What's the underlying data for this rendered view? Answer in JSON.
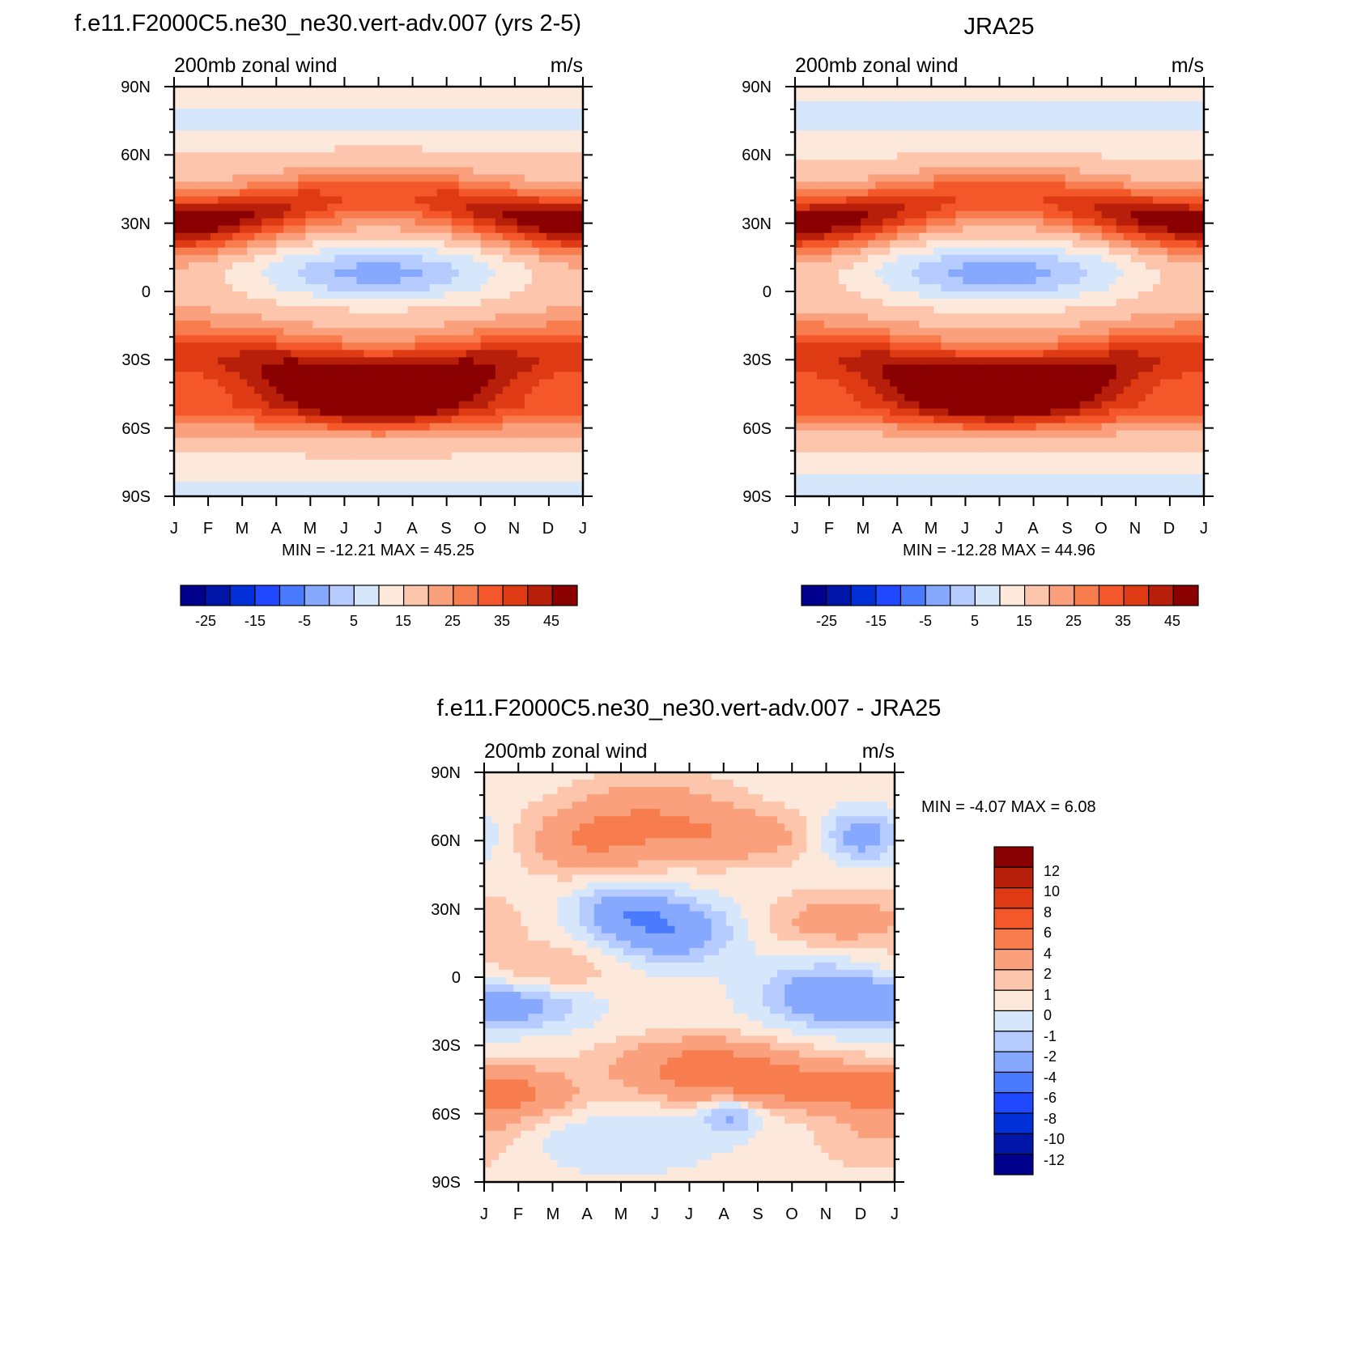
{
  "colorbar_palette": [
    "#00008c",
    "#0016a8",
    "#0230d8",
    "#1f48ff",
    "#4a7bff",
    "#86a8ff",
    "#b6cbff",
    "#d6e6fb",
    "#fde8dc",
    "#fdc6ac",
    "#faa07d",
    "#f77c4e",
    "#f4572a",
    "#de3a14",
    "#b81f0a",
    "#8a0000"
  ],
  "diff_palette": [
    "#00008c",
    "#0016a8",
    "#0230d8",
    "#1f48ff",
    "#4a7bff",
    "#86a8ff",
    "#b6cbff",
    "#d6e6fb",
    "#fde8dc",
    "#fdc6ac",
    "#faa07d",
    "#f77c4e",
    "#f4572a",
    "#de3a14",
    "#b81f0a",
    "#8a0000"
  ],
  "common": {
    "left_label": "200mb zonal wind",
    "right_label": "m/s",
    "months": [
      "J",
      "F",
      "M",
      "A",
      "M",
      "J",
      "J",
      "A",
      "S",
      "O",
      "N",
      "D",
      "J"
    ],
    "lat_labels": [
      "90N",
      "60N",
      "30N",
      "0",
      "30S",
      "60S",
      "90S"
    ]
  },
  "chart_data": [
    {
      "type": "heatmap",
      "id": "model",
      "title": "f.e11.F2000C5.ne30_ne30.vert-adv.007 (yrs 2-5)",
      "left_label": "200mb zonal wind",
      "right_label": "m/s",
      "x": [
        "J",
        "F",
        "M",
        "A",
        "M",
        "J",
        "J",
        "A",
        "S",
        "O",
        "N",
        "D",
        "J"
      ],
      "y": [
        "90N",
        "60N",
        "30N",
        "0",
        "30S",
        "60S",
        "90S"
      ],
      "min": -12.21,
      "max": 45.25,
      "stats_text": "MIN = -12.21 MAX =  45.25",
      "colorbar_labels": [
        "-25",
        "-15",
        "-5",
        "5",
        "15",
        "25",
        "35",
        "45"
      ],
      "levels": [
        -30,
        -25,
        -20,
        -15,
        -10,
        -5,
        0,
        5,
        10,
        15,
        20,
        25,
        30,
        35,
        40,
        45
      ],
      "jet_nh_peak_jan": 40,
      "jet_sh_peak_jul": 45,
      "tropical_easterly_min": -12
    },
    {
      "type": "heatmap",
      "id": "obs",
      "title": "JRA25",
      "left_label": "200mb zonal wind",
      "right_label": "m/s",
      "x": [
        "J",
        "F",
        "M",
        "A",
        "M",
        "J",
        "J",
        "A",
        "S",
        "O",
        "N",
        "D",
        "J"
      ],
      "y": [
        "90N",
        "60N",
        "30N",
        "0",
        "30S",
        "60S",
        "90S"
      ],
      "min": -12.28,
      "max": 44.96,
      "stats_text": "MIN = -12.28 MAX =  44.96",
      "colorbar_labels": [
        "-25",
        "-15",
        "-5",
        "5",
        "15",
        "25",
        "35",
        "45"
      ],
      "levels": [
        -30,
        -25,
        -20,
        -15,
        -10,
        -5,
        0,
        5,
        10,
        15,
        20,
        25,
        30,
        35,
        40,
        45
      ],
      "jet_nh_peak_jan": 40,
      "jet_sh_peak_jul": 40,
      "tropical_easterly_min": -12
    },
    {
      "type": "heatmap",
      "id": "diff",
      "title": "f.e11.F2000C5.ne30_ne30.vert-adv.007 - JRA25",
      "left_label": "200mb zonal wind",
      "right_label": "m/s",
      "x": [
        "J",
        "F",
        "M",
        "A",
        "M",
        "J",
        "J",
        "A",
        "S",
        "O",
        "N",
        "D",
        "J"
      ],
      "y": [
        "90N",
        "60N",
        "30N",
        "0",
        "30S",
        "60S",
        "90S"
      ],
      "min": -4.07,
      "max": 6.08,
      "stats_text": "MIN =  -4.07 MAX =   6.08",
      "colorbar_labels": [
        "12",
        "10",
        "8",
        "6",
        "4",
        "2",
        "1",
        "0",
        "-1",
        "-2",
        "-4",
        "-6",
        "-8",
        "-10",
        "-12"
      ],
      "levels": [
        -12,
        -10,
        -8,
        -6,
        -4,
        -2,
        -1,
        0,
        1,
        2,
        4,
        6,
        8,
        10,
        12
      ]
    }
  ]
}
